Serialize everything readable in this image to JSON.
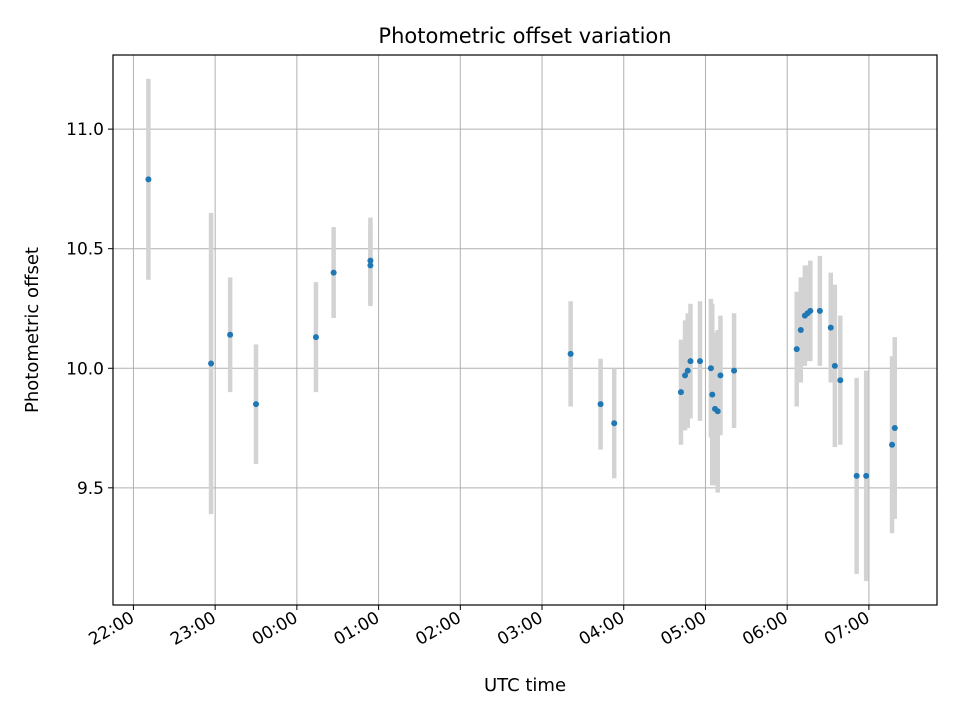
{
  "chart_data": {
    "type": "scatter",
    "title": "Photometric offset variation",
    "xlabel": "UTC time",
    "ylabel": "Photometric offset",
    "x_axis": "time",
    "xlim": [
      "21:45",
      "07:50"
    ],
    "ylim": [
      9.01,
      11.31
    ],
    "x_ticks": [
      "22:00",
      "23:00",
      "00:00",
      "01:00",
      "02:00",
      "03:00",
      "04:00",
      "05:00",
      "06:00",
      "07:00"
    ],
    "y_ticks": [
      9.5,
      10.0,
      10.5,
      11.0
    ],
    "y_tick_labels": [
      "9.5",
      "10.0",
      "10.5",
      "11.0"
    ],
    "grid": true,
    "point_color": "#1f77b4",
    "errorbar_color": "#d3d3d3",
    "points": [
      {
        "t": "22:11",
        "y": 10.79,
        "err": 0.42
      },
      {
        "t": "22:57",
        "y": 10.02,
        "err": 0.63
      },
      {
        "t": "23:11",
        "y": 10.14,
        "err": 0.24
      },
      {
        "t": "23:30",
        "y": 9.85,
        "err": 0.25
      },
      {
        "t": "00:14",
        "y": 10.13,
        "err": 0.23
      },
      {
        "t": "00:27",
        "y": 10.4,
        "err": 0.19
      },
      {
        "t": "00:54",
        "y": 10.45,
        "err": 0.18
      },
      {
        "t": "00:54",
        "y": 10.43,
        "err": 0.17
      },
      {
        "t": "03:21",
        "y": 10.06,
        "err": 0.22
      },
      {
        "t": "03:43",
        "y": 9.85,
        "err": 0.19
      },
      {
        "t": "03:53",
        "y": 9.77,
        "err": 0.23
      },
      {
        "t": "04:42",
        "y": 9.9,
        "err": 0.22
      },
      {
        "t": "04:45",
        "y": 9.97,
        "err": 0.23
      },
      {
        "t": "04:47",
        "y": 9.99,
        "err": 0.24
      },
      {
        "t": "04:49",
        "y": 10.03,
        "err": 0.24
      },
      {
        "t": "04:56",
        "y": 10.03,
        "err": 0.25
      },
      {
        "t": "05:04",
        "y": 10.0,
        "err": 0.29
      },
      {
        "t": "05:05",
        "y": 9.89,
        "err": 0.38
      },
      {
        "t": "05:07",
        "y": 9.83,
        "err": 0.32
      },
      {
        "t": "05:09",
        "y": 9.82,
        "err": 0.34
      },
      {
        "t": "05:11",
        "y": 9.97,
        "err": 0.25
      },
      {
        "t": "05:21",
        "y": 9.99,
        "err": 0.24
      },
      {
        "t": "06:07",
        "y": 10.08,
        "err": 0.24
      },
      {
        "t": "06:10",
        "y": 10.16,
        "err": 0.22
      },
      {
        "t": "06:13",
        "y": 10.22,
        "err": 0.21
      },
      {
        "t": "06:15",
        "y": 10.23,
        "err": 0.2
      },
      {
        "t": "06:17",
        "y": 10.24,
        "err": 0.21
      },
      {
        "t": "06:24",
        "y": 10.24,
        "err": 0.23
      },
      {
        "t": "06:32",
        "y": 10.17,
        "err": 0.23
      },
      {
        "t": "06:35",
        "y": 10.01,
        "err": 0.34
      },
      {
        "t": "06:39",
        "y": 9.95,
        "err": 0.27
      },
      {
        "t": "06:51",
        "y": 9.55,
        "err": 0.41
      },
      {
        "t": "06:58",
        "y": 9.55,
        "err": 0.44
      },
      {
        "t": "07:17",
        "y": 9.68,
        "err": 0.37
      },
      {
        "t": "07:19",
        "y": 9.75,
        "err": 0.38
      }
    ]
  }
}
